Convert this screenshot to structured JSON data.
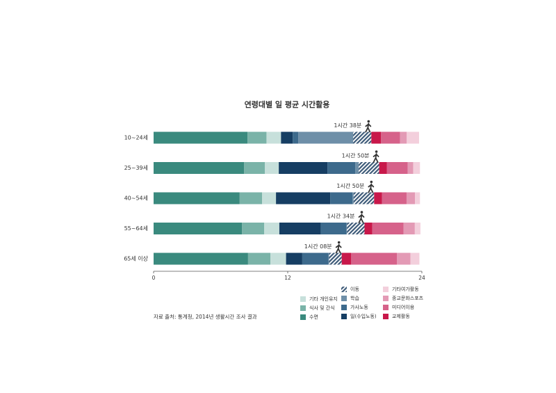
{
  "chart_data": {
    "type": "stacked-bar",
    "orientation": "horizontal",
    "title": "연령대별 일 평균 시간활용",
    "source": "자료 출처: 통계청, 2014년 생활시간 조사 결과",
    "categories": [
      "10~24세",
      "25~39세",
      "40~54세",
      "55~64세",
      "65세 이상"
    ],
    "xlim": [
      0,
      24
    ],
    "xticks": [
      0,
      12,
      24
    ],
    "series": [
      {
        "name": "수면",
        "color": "#3a8a7e",
        "values": [
          8.4,
          8.1,
          7.7,
          7.9,
          8.45
        ]
      },
      {
        "name": "식사 및 간식",
        "color": "#7ab3a8",
        "values": [
          1.7,
          1.85,
          2.0,
          2.0,
          2.0
        ]
      },
      {
        "name": "기타 개인유지",
        "color": "#c7e0db",
        "values": [
          1.3,
          1.25,
          1.25,
          1.35,
          1.4
        ]
      },
      {
        "name": "일(수입노동)",
        "color": "#163e63",
        "values": [
          1.05,
          4.35,
          4.85,
          3.7,
          1.45
        ]
      },
      {
        "name": "가사노동",
        "color": "#3d6a8c",
        "values": [
          0.5,
          2.5,
          2.0,
          2.3,
          2.35
        ]
      },
      {
        "name": "학습",
        "color": "#6e8fa8",
        "values": [
          4.9,
          0.3,
          0.1,
          0.05,
          0.05
        ]
      },
      {
        "name": "이동",
        "color": "#3d5a78",
        "hatch": true,
        "values": [
          1.63,
          1.83,
          1.83,
          1.57,
          1.13
        ],
        "value_labels": [
          "1시간 38분",
          "1시간 50분",
          "1시간 50분",
          "1시간 34분",
          "1시간 08분"
        ]
      },
      {
        "name": "교제활동",
        "color": "#c8184a",
        "values": [
          0.87,
          0.7,
          0.7,
          0.7,
          0.85
        ]
      },
      {
        "name": "미디어이용",
        "color": "#d6628a",
        "values": [
          1.7,
          1.85,
          2.2,
          2.8,
          4.1
        ]
      },
      {
        "name": "종교문화스포츠",
        "color": "#e39ab5",
        "values": [
          0.6,
          0.5,
          0.75,
          1.0,
          1.2
        ]
      },
      {
        "name": "기타여가활동",
        "color": "#f3cfdc",
        "values": [
          1.1,
          0.6,
          0.45,
          0.5,
          0.8
        ]
      }
    ]
  }
}
